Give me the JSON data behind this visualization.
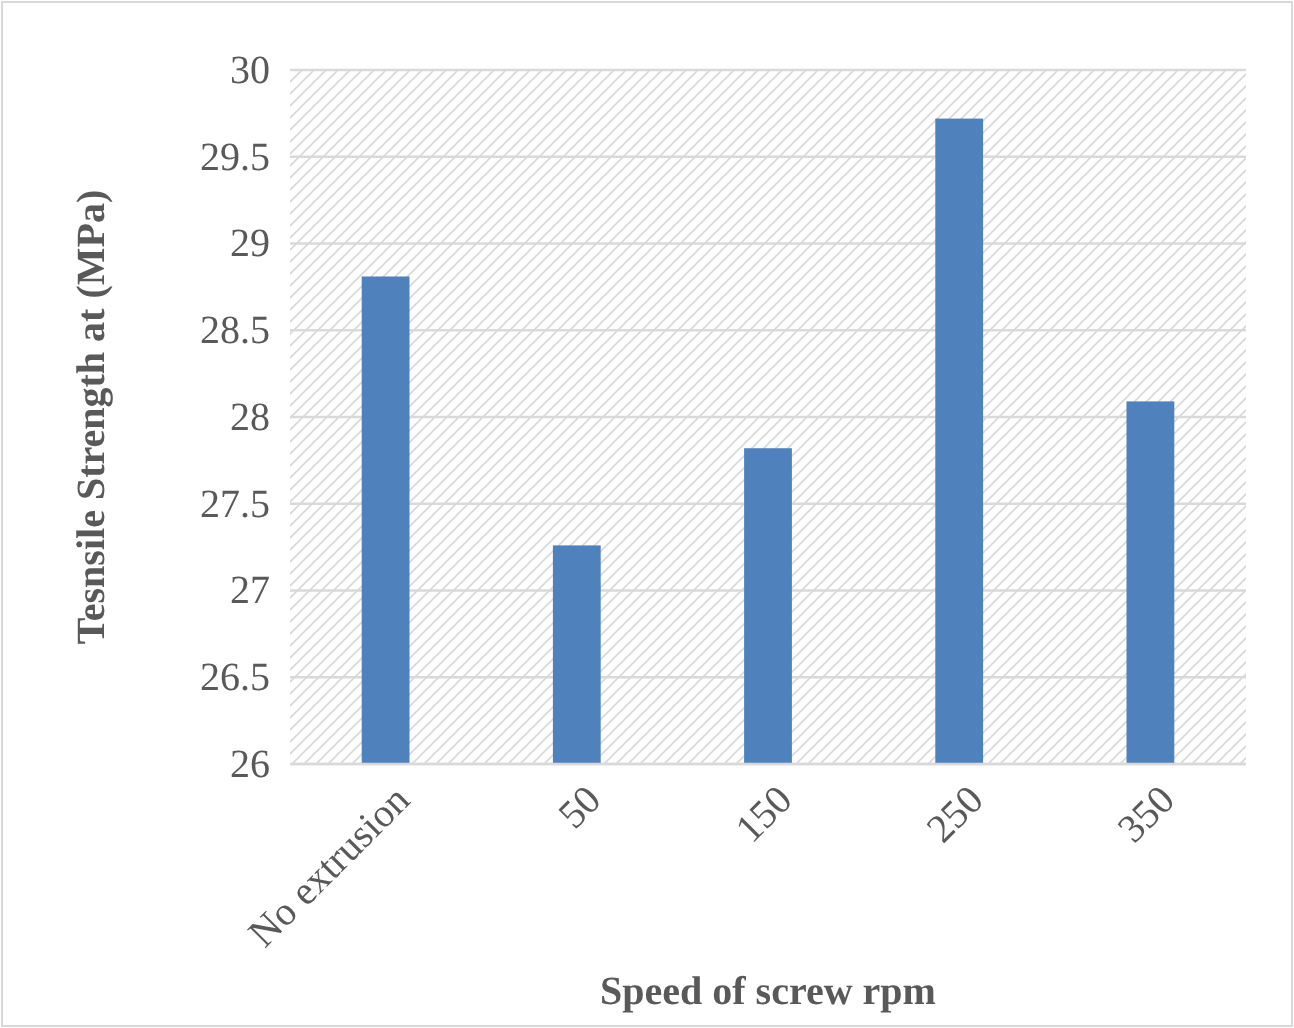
{
  "chart_data": {
    "type": "bar",
    "categories": [
      "No extrusion",
      "50",
      "150",
      "250",
      "350"
    ],
    "values": [
      28.81,
      27.26,
      27.82,
      29.72,
      28.09
    ],
    "color": "#4f81bd",
    "ylim": [
      26,
      30
    ],
    "yticks": [
      26,
      26.5,
      27,
      27.5,
      28,
      28.5,
      29,
      29.5,
      30
    ],
    "grid": "y",
    "xlabel": "Speed of screw rpm",
    "ylabel": "Tesnsile Strength at (MPa)"
  }
}
